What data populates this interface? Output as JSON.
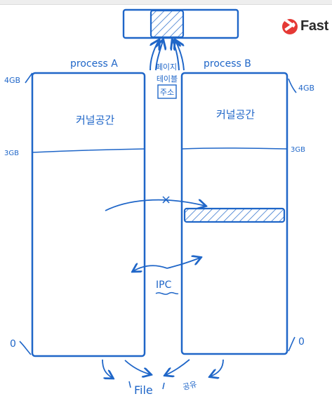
{
  "brand": {
    "name": "Fast"
  },
  "page_table": {
    "label_lines": [
      "페이지",
      "테이블",
      "주소"
    ]
  },
  "process_a": {
    "title": "process A",
    "top_label": "4GB",
    "kernel_label": "커널공간",
    "boundary_label": "3GB",
    "bottom_label": "0"
  },
  "process_b": {
    "title": "process B",
    "top_label": "4GB",
    "kernel_label": "커널공간",
    "boundary_label": "3GB",
    "bottom_label": "0"
  },
  "annotations": {
    "blocked_mark": "×",
    "ipc": "IPC",
    "file": "File",
    "shared": "공유"
  },
  "colors": {
    "ink": "#1f66c8",
    "brand": "#e53935"
  }
}
